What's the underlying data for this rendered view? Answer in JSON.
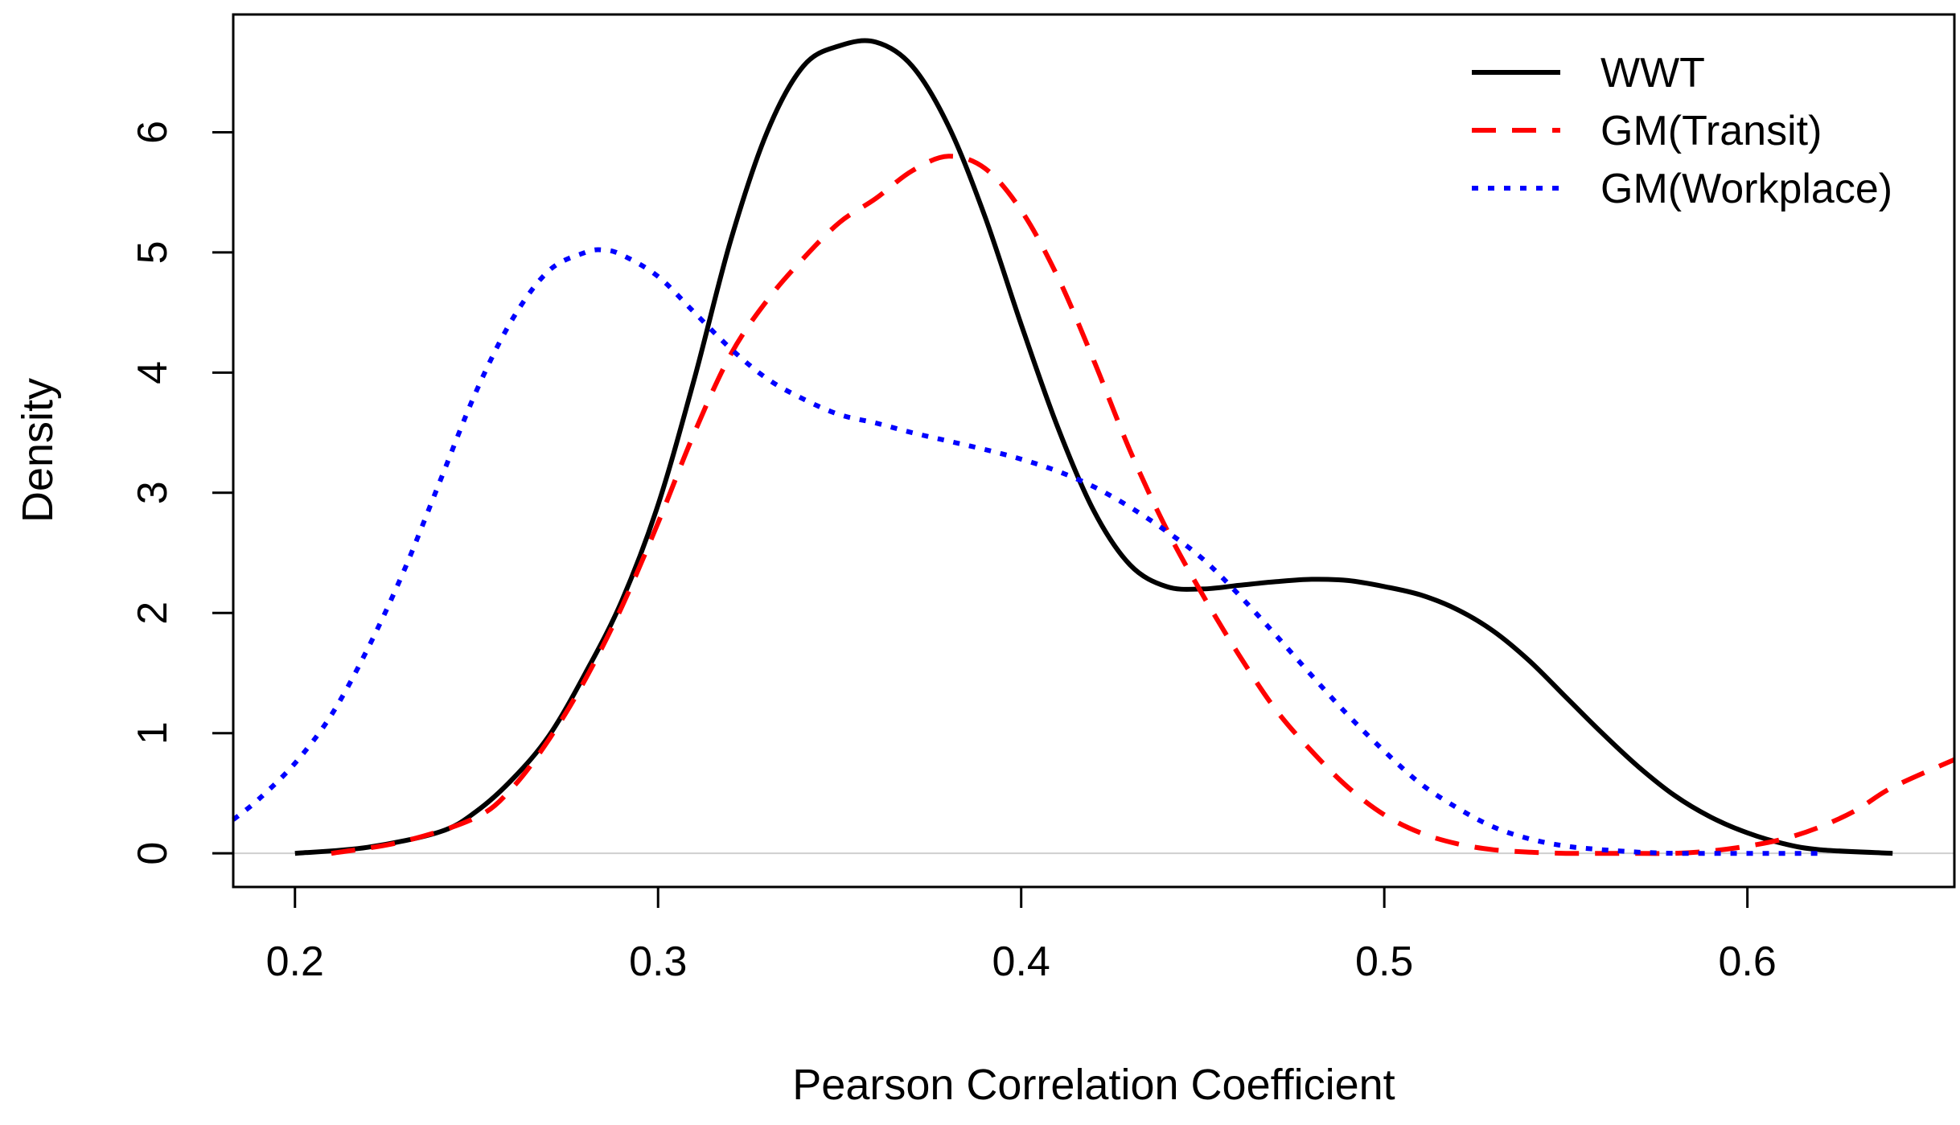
{
  "chart_data": {
    "type": "line",
    "title": "",
    "xlabel": "Pearson Correlation Coefficient",
    "ylabel": "Density",
    "xlim": [
      0.183,
      0.657
    ],
    "ylim": [
      -0.28,
      6.98
    ],
    "xticks": [
      0.2,
      0.3,
      0.4,
      0.5,
      0.6
    ],
    "xtick_labels": [
      "0.2",
      "0.3",
      "0.4",
      "0.5",
      "0.6"
    ],
    "yticks": [
      0,
      1,
      2,
      3,
      4,
      5,
      6
    ],
    "ytick_labels": [
      "0",
      "1",
      "2",
      "3",
      "4",
      "5",
      "6"
    ],
    "grid": false,
    "legend_position": "top-right",
    "series": [
      {
        "name": "WWT",
        "color": "#000000",
        "line_style": "solid",
        "x": [
          0.2,
          0.22,
          0.24,
          0.25,
          0.26,
          0.27,
          0.28,
          0.29,
          0.3,
          0.31,
          0.32,
          0.33,
          0.34,
          0.35,
          0.36,
          0.37,
          0.38,
          0.39,
          0.4,
          0.41,
          0.42,
          0.43,
          0.44,
          0.45,
          0.46,
          0.47,
          0.48,
          0.49,
          0.5,
          0.51,
          0.52,
          0.53,
          0.54,
          0.55,
          0.56,
          0.57,
          0.58,
          0.59,
          0.6,
          0.61,
          0.62,
          0.64
        ],
        "y": [
          0.0,
          0.05,
          0.18,
          0.35,
          0.62,
          0.98,
          1.5,
          2.1,
          2.9,
          3.95,
          5.1,
          6.0,
          6.55,
          6.72,
          6.75,
          6.55,
          6.05,
          5.3,
          4.4,
          3.55,
          2.85,
          2.4,
          2.22,
          2.2,
          2.23,
          2.26,
          2.28,
          2.27,
          2.22,
          2.15,
          2.03,
          1.85,
          1.6,
          1.3,
          1.0,
          0.72,
          0.48,
          0.3,
          0.17,
          0.08,
          0.03,
          0.0
        ]
      },
      {
        "name": "GM(Transit)",
        "color": "#ff0000",
        "line_style": "dashed",
        "x": [
          0.21,
          0.23,
          0.25,
          0.26,
          0.27,
          0.28,
          0.29,
          0.3,
          0.31,
          0.32,
          0.33,
          0.34,
          0.35,
          0.36,
          0.37,
          0.38,
          0.39,
          0.4,
          0.41,
          0.42,
          0.43,
          0.44,
          0.45,
          0.46,
          0.47,
          0.48,
          0.49,
          0.5,
          0.51,
          0.52,
          0.53,
          0.54,
          0.55,
          0.56,
          0.57,
          0.58,
          0.59,
          0.6,
          0.61,
          0.62,
          0.63,
          0.64,
          0.657
        ],
        "y": [
          0.0,
          0.1,
          0.3,
          0.55,
          0.95,
          1.45,
          2.05,
          2.75,
          3.5,
          4.15,
          4.6,
          4.95,
          5.25,
          5.45,
          5.68,
          5.8,
          5.7,
          5.35,
          4.8,
          4.1,
          3.35,
          2.7,
          2.15,
          1.65,
          1.2,
          0.85,
          0.55,
          0.32,
          0.17,
          0.08,
          0.03,
          0.01,
          0.0,
          0.0,
          0.0,
          0.0,
          0.02,
          0.06,
          0.12,
          0.22,
          0.36,
          0.55,
          0.78
        ]
      },
      {
        "name": "GM(Workplace)",
        "color": "#0000ff",
        "line_style": "dotted",
        "x": [
          0.183,
          0.19,
          0.2,
          0.21,
          0.22,
          0.23,
          0.24,
          0.25,
          0.26,
          0.27,
          0.28,
          0.285,
          0.29,
          0.3,
          0.31,
          0.32,
          0.33,
          0.34,
          0.35,
          0.36,
          0.37,
          0.38,
          0.39,
          0.4,
          0.41,
          0.42,
          0.43,
          0.44,
          0.45,
          0.46,
          0.47,
          0.48,
          0.49,
          0.5,
          0.51,
          0.52,
          0.53,
          0.54,
          0.55,
          0.56,
          0.57,
          0.58,
          0.59,
          0.6,
          0.62
        ],
        "y": [
          0.28,
          0.45,
          0.75,
          1.15,
          1.7,
          2.35,
          3.1,
          3.85,
          4.45,
          4.85,
          5.0,
          5.02,
          4.98,
          4.8,
          4.5,
          4.2,
          3.95,
          3.78,
          3.65,
          3.58,
          3.5,
          3.43,
          3.36,
          3.28,
          3.18,
          3.05,
          2.88,
          2.68,
          2.45,
          2.15,
          1.82,
          1.48,
          1.15,
          0.85,
          0.58,
          0.38,
          0.22,
          0.12,
          0.06,
          0.03,
          0.01,
          0.0,
          0.0,
          0.0,
          0.0
        ]
      }
    ]
  }
}
